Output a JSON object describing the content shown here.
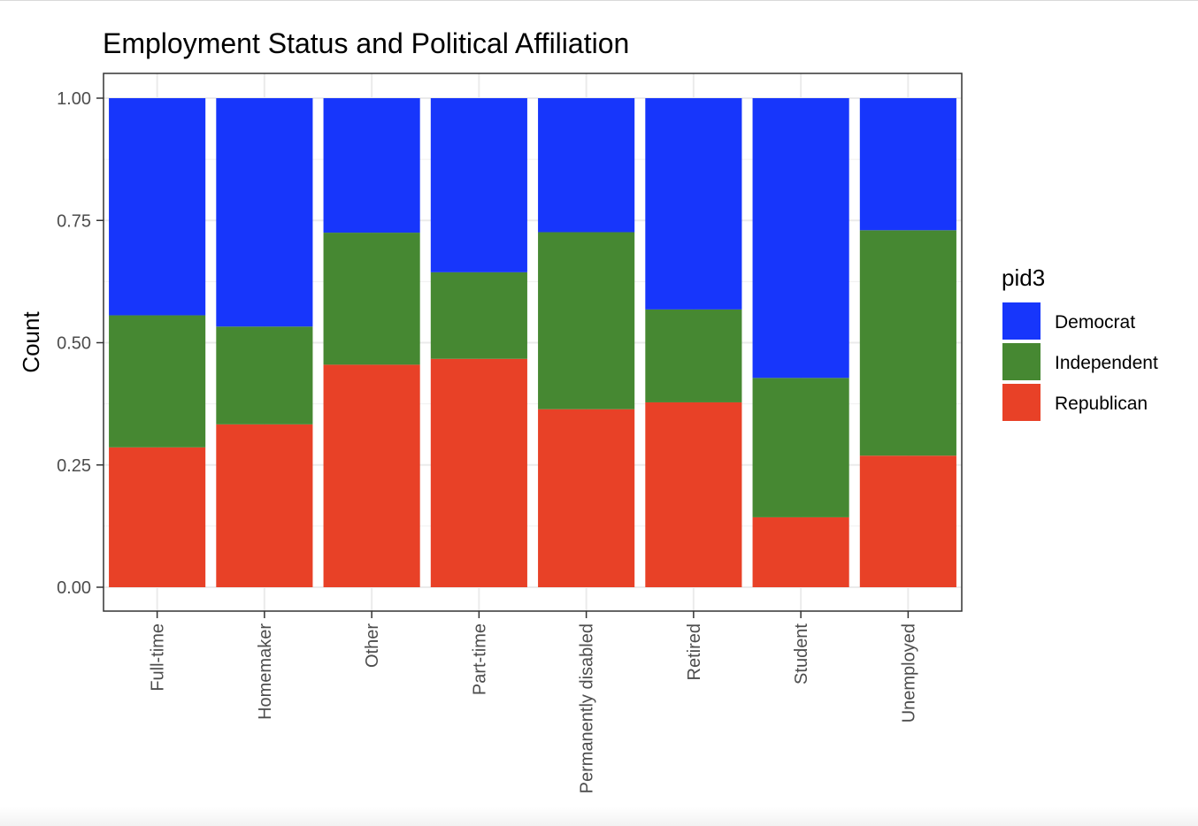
{
  "chart_data": {
    "type": "bar",
    "stacked": "fill",
    "title": "Employment Status and Political Affiliation",
    "xlabel": "",
    "ylabel": "Count",
    "ylim": [
      0,
      1
    ],
    "yticks": [
      "0.00",
      "0.25",
      "0.50",
      "0.75",
      "1.00"
    ],
    "ytick_values": [
      0,
      0.25,
      0.5,
      0.75,
      1
    ],
    "grid": true,
    "legend": {
      "title": "pid3",
      "position": "right"
    },
    "categories": [
      "Full-time",
      "Homemaker",
      "Other",
      "Part-time",
      "Permanently disabled",
      "Retired",
      "Student",
      "Unemployed"
    ],
    "series": [
      {
        "name": "Republican",
        "color": "#e84127",
        "values": [
          0.286,
          0.333,
          0.455,
          0.467,
          0.364,
          0.378,
          0.143,
          0.269
        ]
      },
      {
        "name": "Independent",
        "color": "#468832",
        "values": [
          0.27,
          0.2,
          0.27,
          0.177,
          0.362,
          0.19,
          0.285,
          0.461
        ]
      },
      {
        "name": "Democrat",
        "color": "#1736fb",
        "values": [
          0.444,
          0.467,
          0.275,
          0.356,
          0.274,
          0.432,
          0.572,
          0.27
        ]
      }
    ],
    "legend_order": [
      "Democrat",
      "Independent",
      "Republican"
    ]
  }
}
